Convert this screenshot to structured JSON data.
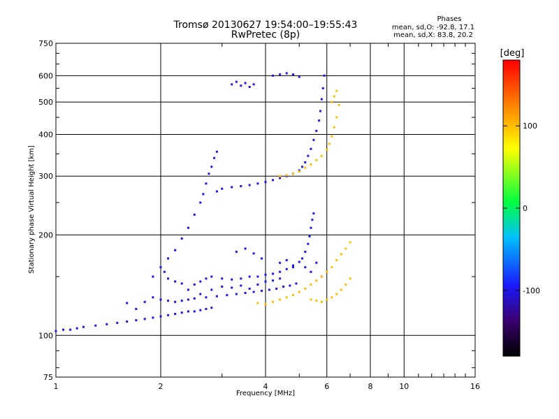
{
  "header": {
    "title_line1": "Tromsø 20130627 19:54:00–19:55:43",
    "title_line2": "RwPretec (8p)"
  },
  "phases": {
    "heading": "Phases",
    "line_o": "mean, sd,O: -92.8, 17.1",
    "line_x": "mean, sd,X: 83.8, 20.2"
  },
  "chart_data": {
    "type": "scatter",
    "title": "Tromsø 20130627 19:54:00–19:55:43",
    "subtitle": "RwPretec (8p)",
    "xlabel": "Frequency [MHz]",
    "ylabel": "Stationary phase Virtual Height [km]",
    "xscale": "log",
    "yscale": "log",
    "xlim": [
      1,
      16
    ],
    "ylim": [
      75,
      750
    ],
    "x_ticks": [
      1,
      2,
      4,
      6,
      8,
      10,
      16
    ],
    "x_tick_labels": [
      "1",
      "2",
      "4",
      "6",
      "8",
      "10",
      "16"
    ],
    "y_ticks": [
      75,
      100,
      200,
      300,
      400,
      500,
      600,
      750
    ],
    "y_tick_labels": [
      "75",
      "100",
      "200",
      "300",
      "400",
      "500",
      "600",
      "750"
    ],
    "grid": true,
    "colorbar": {
      "label": "[deg]",
      "range": [
        -180,
        180
      ],
      "ticks": [
        100,
        0,
        -100
      ],
      "tick_labels": [
        "100",
        "0",
        "-100"
      ]
    },
    "series": [
      {
        "name": "O",
        "color_value": -100,
        "points": [
          [
            1.0,
            103
          ],
          [
            1.05,
            104
          ],
          [
            1.1,
            104
          ],
          [
            1.15,
            105
          ],
          [
            1.2,
            106
          ],
          [
            1.3,
            107
          ],
          [
            1.4,
            108
          ],
          [
            1.5,
            109
          ],
          [
            1.6,
            110
          ],
          [
            1.7,
            111
          ],
          [
            1.8,
            112
          ],
          [
            1.9,
            113
          ],
          [
            2.0,
            114
          ],
          [
            2.1,
            115
          ],
          [
            2.2,
            116
          ],
          [
            2.3,
            117
          ],
          [
            2.4,
            118
          ],
          [
            2.5,
            118
          ],
          [
            2.6,
            119
          ],
          [
            2.7,
            120
          ],
          [
            2.8,
            121
          ],
          [
            1.6,
            125
          ],
          [
            1.7,
            120
          ],
          [
            1.8,
            126
          ],
          [
            1.9,
            130
          ],
          [
            2.0,
            128
          ],
          [
            2.1,
            127
          ],
          [
            2.2,
            126
          ],
          [
            2.3,
            127
          ],
          [
            2.4,
            128
          ],
          [
            2.5,
            129
          ],
          [
            2.7,
            130
          ],
          [
            2.9,
            131
          ],
          [
            3.1,
            132
          ],
          [
            3.3,
            133
          ],
          [
            3.5,
            134
          ],
          [
            3.7,
            135
          ],
          [
            3.9,
            136
          ],
          [
            4.1,
            137
          ],
          [
            4.3,
            138
          ],
          [
            4.5,
            140
          ],
          [
            4.7,
            141
          ],
          [
            4.9,
            143
          ],
          [
            1.9,
            150
          ],
          [
            2.0,
            160
          ],
          [
            2.05,
            155
          ],
          [
            2.1,
            148
          ],
          [
            2.2,
            145
          ],
          [
            2.3,
            143
          ],
          [
            2.5,
            142
          ],
          [
            2.6,
            145
          ],
          [
            2.7,
            148
          ],
          [
            2.8,
            150
          ],
          [
            3.0,
            148
          ],
          [
            3.2,
            147
          ],
          [
            3.4,
            148
          ],
          [
            3.6,
            150
          ],
          [
            3.8,
            150
          ],
          [
            4.0,
            152
          ],
          [
            4.2,
            153
          ],
          [
            4.4,
            155
          ],
          [
            4.6,
            158
          ],
          [
            4.8,
            162
          ],
          [
            5.0,
            166
          ],
          [
            5.1,
            170
          ],
          [
            5.2,
            178
          ],
          [
            5.3,
            188
          ],
          [
            5.35,
            198
          ],
          [
            5.4,
            210
          ],
          [
            5.45,
            222
          ],
          [
            5.5,
            232
          ],
          [
            2.1,
            170
          ],
          [
            2.2,
            180
          ],
          [
            2.3,
            195
          ],
          [
            2.4,
            210
          ],
          [
            2.5,
            230
          ],
          [
            2.6,
            250
          ],
          [
            2.65,
            265
          ],
          [
            2.7,
            285
          ],
          [
            2.75,
            305
          ],
          [
            2.8,
            320
          ],
          [
            2.85,
            340
          ],
          [
            2.9,
            355
          ],
          [
            2.9,
            270
          ],
          [
            3.0,
            275
          ],
          [
            3.2,
            278
          ],
          [
            3.4,
            280
          ],
          [
            3.6,
            282
          ],
          [
            3.8,
            285
          ],
          [
            4.0,
            288
          ],
          [
            4.2,
            292
          ],
          [
            4.4,
            296
          ],
          [
            4.6,
            300
          ],
          [
            4.8,
            305
          ],
          [
            5.0,
            312
          ],
          [
            5.1,
            320
          ],
          [
            5.2,
            330
          ],
          [
            5.3,
            345
          ],
          [
            5.4,
            362
          ],
          [
            5.5,
            385
          ],
          [
            5.6,
            410
          ],
          [
            5.7,
            440
          ],
          [
            5.75,
            470
          ],
          [
            5.8,
            510
          ],
          [
            5.85,
            550
          ],
          [
            5.9,
            600
          ],
          [
            3.2,
            565
          ],
          [
            3.3,
            575
          ],
          [
            3.4,
            560
          ],
          [
            3.5,
            570
          ],
          [
            3.6,
            555
          ],
          [
            3.7,
            565
          ],
          [
            4.2,
            600
          ],
          [
            4.4,
            605
          ],
          [
            4.6,
            610
          ],
          [
            4.8,
            605
          ],
          [
            5.0,
            595
          ],
          [
            3.3,
            178
          ],
          [
            3.5,
            182
          ],
          [
            3.7,
            176
          ],
          [
            3.9,
            170
          ],
          [
            4.4,
            165
          ],
          [
            4.6,
            168
          ],
          [
            4.8,
            160
          ],
          [
            5.2,
            160
          ],
          [
            5.4,
            155
          ],
          [
            5.6,
            165
          ],
          [
            5.8,
            150
          ],
          [
            2.4,
            137
          ],
          [
            2.6,
            133
          ],
          [
            2.8,
            137
          ],
          [
            3.0,
            140
          ],
          [
            3.2,
            139
          ],
          [
            3.4,
            141
          ],
          [
            3.6,
            138
          ],
          [
            3.8,
            142
          ],
          [
            4.0,
            145
          ],
          [
            4.2,
            146
          ],
          [
            4.4,
            148
          ]
        ]
      },
      {
        "name": "X",
        "color_value": 100,
        "points": [
          [
            3.8,
            125
          ],
          [
            4.0,
            124
          ],
          [
            4.2,
            126
          ],
          [
            4.4,
            128
          ],
          [
            4.6,
            130
          ],
          [
            4.8,
            132
          ],
          [
            5.0,
            135
          ],
          [
            5.2,
            138
          ],
          [
            5.4,
            142
          ],
          [
            5.6,
            146
          ],
          [
            5.8,
            150
          ],
          [
            6.0,
            155
          ],
          [
            6.2,
            160
          ],
          [
            6.4,
            168
          ],
          [
            6.6,
            175
          ],
          [
            6.8,
            182
          ],
          [
            7.0,
            190
          ],
          [
            5.4,
            128
          ],
          [
            5.6,
            127
          ],
          [
            5.8,
            126
          ],
          [
            6.0,
            128
          ],
          [
            6.2,
            130
          ],
          [
            6.4,
            133
          ],
          [
            6.6,
            137
          ],
          [
            6.8,
            142
          ],
          [
            7.0,
            148
          ],
          [
            4.4,
            300
          ],
          [
            4.6,
            302
          ],
          [
            4.8,
            305
          ],
          [
            5.0,
            310
          ],
          [
            5.2,
            318
          ],
          [
            5.4,
            325
          ],
          [
            5.6,
            335
          ],
          [
            5.8,
            345
          ],
          [
            6.0,
            360
          ],
          [
            6.1,
            375
          ],
          [
            6.2,
            395
          ],
          [
            6.3,
            420
          ],
          [
            6.4,
            450
          ],
          [
            6.5,
            490
          ],
          [
            6.3,
            520
          ],
          [
            6.2,
            500
          ],
          [
            6.4,
            540
          ]
        ]
      }
    ]
  }
}
